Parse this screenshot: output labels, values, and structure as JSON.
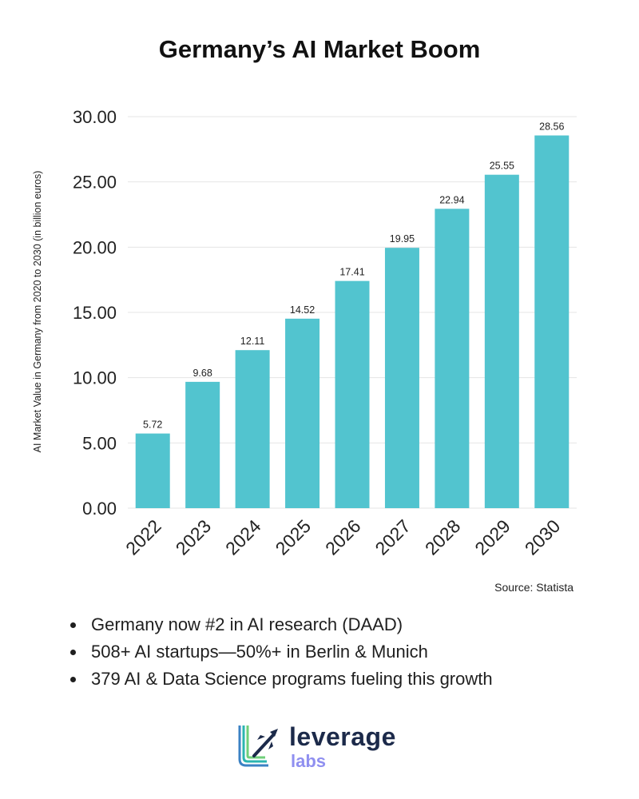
{
  "title": "Germany’s AI Market Boom",
  "chart_data": {
    "type": "bar",
    "categories": [
      "2022",
      "2023",
      "2024",
      "2025",
      "2026",
      "2027",
      "2028",
      "2029",
      "2030"
    ],
    "values": [
      5.72,
      9.68,
      12.11,
      14.52,
      17.41,
      19.95,
      22.94,
      25.55,
      28.56
    ],
    "value_labels": [
      "5.72",
      "9.68",
      "12.11",
      "14.52",
      "17.41",
      "19.95",
      "22.94",
      "25.55",
      "28.56"
    ],
    "ylabel": "AI Market Value in Germany from 2020 to 2030 (in billion euros)",
    "xlabel": "",
    "ylim": [
      0,
      30
    ],
    "yticks": [
      0,
      5,
      10,
      15,
      20,
      25,
      30
    ],
    "ytick_labels": [
      "0.00",
      "5.00",
      "10.00",
      "15.00",
      "20.00",
      "25.00",
      "30.00"
    ],
    "bar_color": "#52c4cf",
    "grid": true
  },
  "source": "Source: Statista",
  "bullets": [
    "Germany now #2 in AI research (DAAD)",
    "508+ AI startups—50%+ in Berlin & Munich",
    "379 AI & Data Science programs fueling this growth"
  ],
  "brand": {
    "name": "leverage",
    "sub": "labs"
  }
}
